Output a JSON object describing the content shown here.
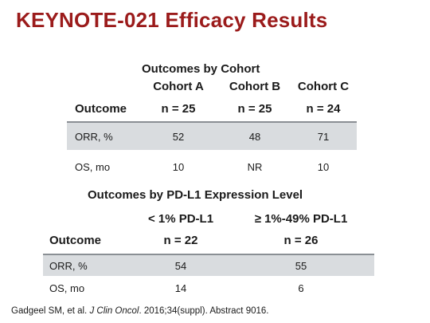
{
  "title": "KEYNOTE-021 Efficacy Results",
  "table1": {
    "title": "Outcomes by Cohort",
    "outcome_header": "Outcome",
    "columns": [
      {
        "name": "Cohort A",
        "n": "n = 25"
      },
      {
        "name": "Cohort B",
        "n": "n = 25"
      },
      {
        "name": "Cohort C",
        "n": "n = 24"
      }
    ],
    "rows": [
      {
        "label": "ORR, %",
        "values": [
          "52",
          "48",
          "71"
        ]
      },
      {
        "label": "OS, mo",
        "values": [
          "10",
          "NR",
          "10"
        ]
      }
    ]
  },
  "table2": {
    "title": "Outcomes by PD-L1 Expression Level",
    "outcome_header": "Outcome",
    "columns": [
      {
        "name": "< 1% PD-L1",
        "n": "n = 22"
      },
      {
        "name": "≥ 1%-49% PD-L1",
        "n": "n = 26"
      }
    ],
    "rows": [
      {
        "label": "ORR, %",
        "values": [
          "54",
          "55"
        ]
      },
      {
        "label": "OS, mo",
        "values": [
          "14",
          "6"
        ]
      }
    ]
  },
  "footnote": {
    "authors": "Gadgeel SM, et al.",
    "journal": "J Clin Oncol",
    "details": ". 2016;34(suppl). Abstract 9016."
  }
}
